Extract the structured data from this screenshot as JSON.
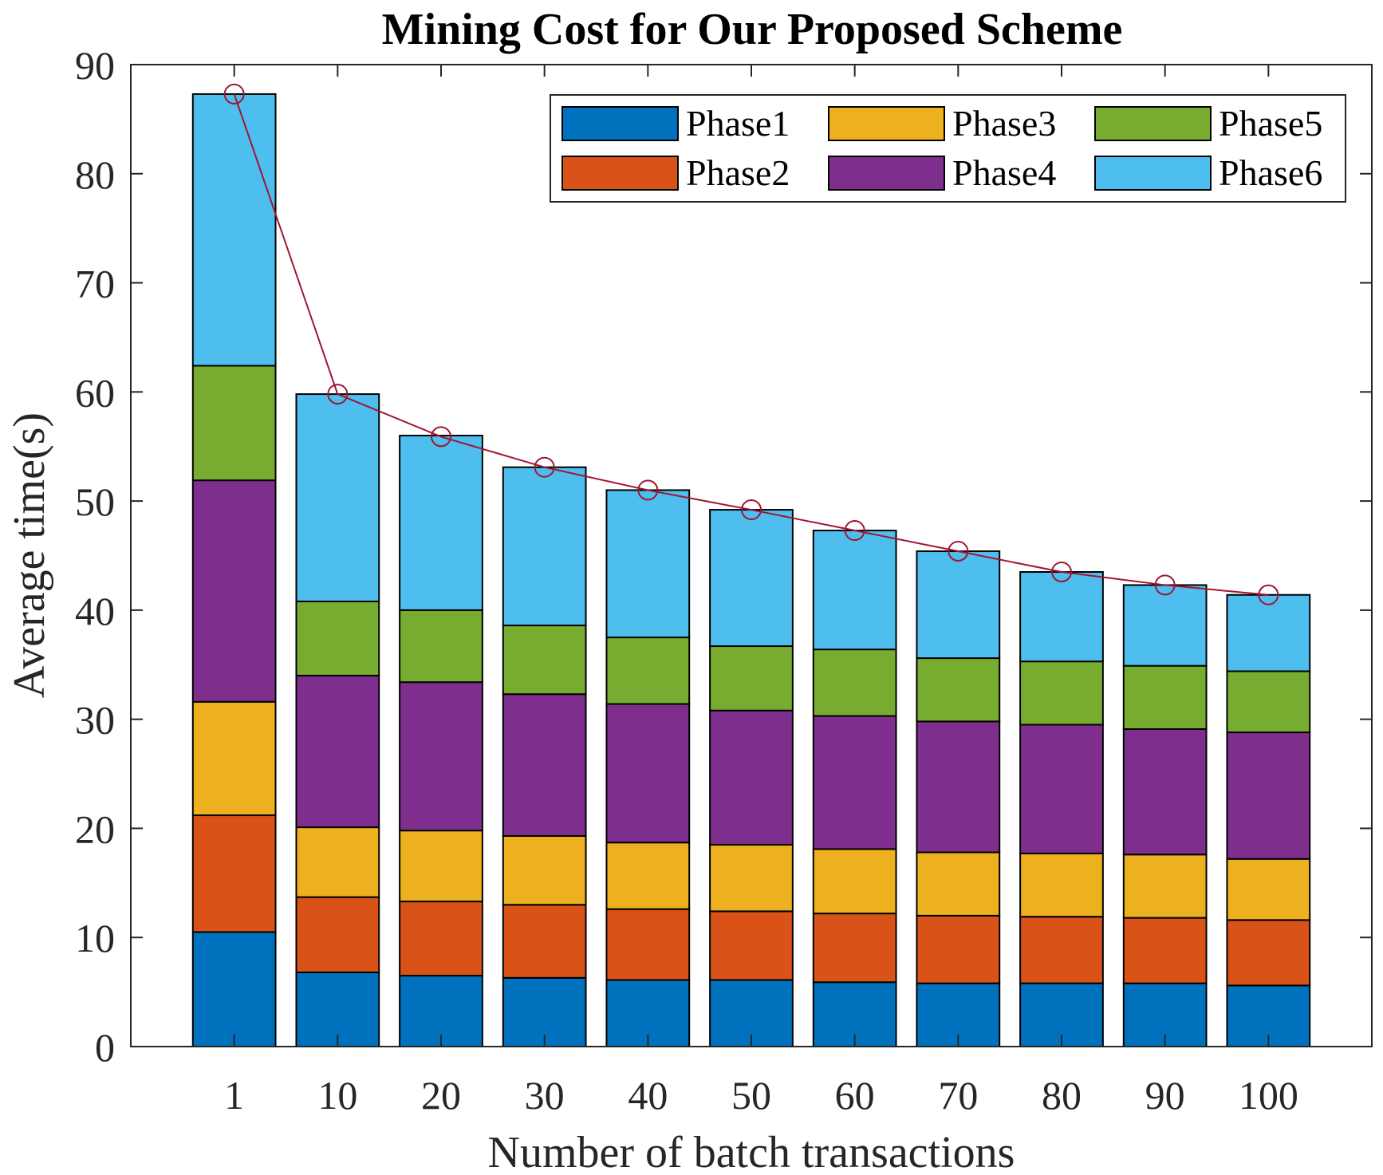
{
  "chart_data": {
    "type": "bar",
    "stacked": true,
    "title": "Mining Cost for Our Proposed Scheme",
    "xlabel": "Number of batch transactions",
    "ylabel": "Average time(s)",
    "categories": [
      "1",
      "10",
      "20",
      "30",
      "40",
      "50",
      "60",
      "70",
      "80",
      "90",
      "100"
    ],
    "ylim": [
      0,
      90
    ],
    "yticks": [
      "0",
      "10",
      "20",
      "30",
      "40",
      "50",
      "60",
      "70",
      "80",
      "90"
    ],
    "series": [
      {
        "name": "Phase1",
        "color": "#0072BD",
        "values": [
          10.5,
          6.8,
          6.5,
          6.3,
          6.1,
          6.1,
          5.9,
          5.8,
          5.8,
          5.8,
          5.6
        ]
      },
      {
        "name": "Phase2",
        "color": "#D95319",
        "values": [
          10.7,
          6.9,
          6.8,
          6.7,
          6.5,
          6.3,
          6.3,
          6.2,
          6.1,
          6.0,
          6.0
        ]
      },
      {
        "name": "Phase3",
        "color": "#EDB120",
        "values": [
          10.4,
          6.4,
          6.5,
          6.3,
          6.1,
          6.1,
          5.9,
          5.8,
          5.8,
          5.8,
          5.6
        ]
      },
      {
        "name": "Phase4",
        "color": "#7E2F8E",
        "values": [
          20.3,
          13.9,
          13.6,
          13.0,
          12.7,
          12.3,
          12.2,
          12.0,
          11.8,
          11.5,
          11.6
        ]
      },
      {
        "name": "Phase5",
        "color": "#77AC30",
        "values": [
          10.5,
          6.8,
          6.6,
          6.3,
          6.1,
          5.9,
          6.1,
          5.8,
          5.8,
          5.8,
          5.6
        ]
      },
      {
        "name": "Phase6",
        "color": "#4DBEEE",
        "values": [
          24.9,
          19.0,
          16.0,
          14.5,
          13.5,
          12.5,
          10.9,
          9.8,
          8.2,
          7.4,
          7.0
        ]
      }
    ],
    "total_line": {
      "color": "#A2142F",
      "marker": "circle",
      "values": [
        87.3,
        59.8,
        55.9,
        53.1,
        51.0,
        49.2,
        47.3,
        45.4,
        43.5,
        42.3,
        41.4
      ]
    },
    "legend": {
      "position": "top-right",
      "columns": 3
    },
    "grid": false
  }
}
